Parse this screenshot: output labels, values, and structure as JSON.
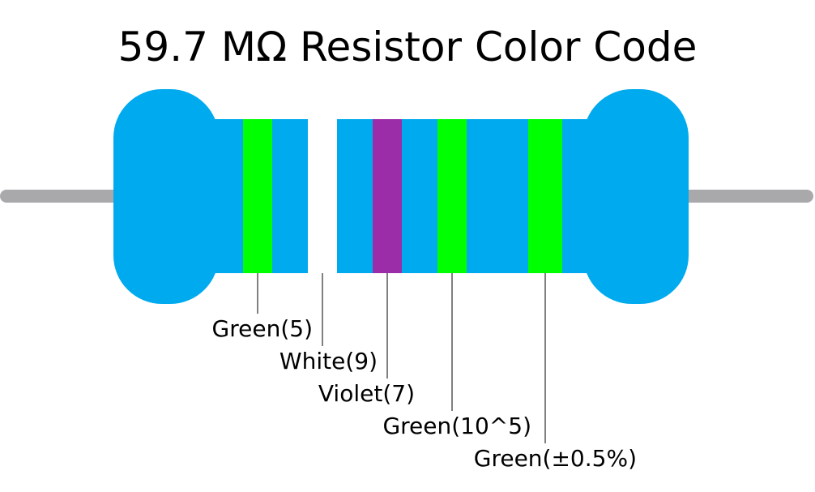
{
  "title": "59.7 MΩ Resistor Color Code",
  "resistor": {
    "body_color": "#00aaee",
    "lead_color": "#a9a9ac",
    "leader_line_color": "#000000"
  },
  "bands": [
    {
      "name": "Green",
      "color": "#00ff00",
      "label": "Green(5)"
    },
    {
      "name": "White",
      "color": "#ffffff",
      "label": "White(9)"
    },
    {
      "name": "Violet",
      "color": "#9b2ea8",
      "label": "Violet(7)"
    },
    {
      "name": "Green",
      "color": "#00ff00",
      "label": "Green(10^5)"
    },
    {
      "name": "Green",
      "color": "#00ff00",
      "label": "Green(±0.5%)"
    }
  ]
}
